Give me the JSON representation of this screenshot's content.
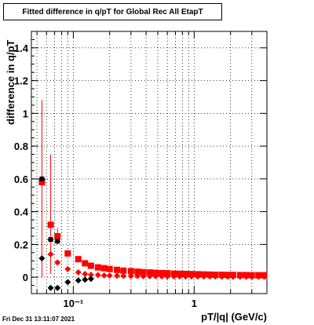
{
  "chart_data": {
    "type": "scatter",
    "title": "Fitted difference in q/pT for Global Rec All EtapT",
    "xlabel": "pT/|q| (GeV/c)",
    "ylabel": "difference in q/pT",
    "x_scale": "log",
    "xlim": [
      0.045,
      4.0
    ],
    "ylim": [
      -0.1,
      1.5
    ],
    "x_ticks": [
      {
        "value": 0.1,
        "label": "10⁻¹"
      },
      {
        "value": 1,
        "label": "1"
      }
    ],
    "y_ticks": [
      0,
      0.2,
      0.4,
      0.6,
      0.8,
      1,
      1.2,
      1.4
    ],
    "grid": true,
    "series": [
      {
        "color": "#ff0000",
        "marker": "square",
        "points": [
          {
            "x": 0.055,
            "y": 0.58,
            "yerr_lo": 0.58,
            "yerr_hi": 0.5
          },
          {
            "x": 0.065,
            "y": 0.32,
            "yerr_lo": 0.3,
            "yerr_hi": 0.43
          },
          {
            "x": 0.074,
            "y": 0.25,
            "yerr_lo": 0.05,
            "yerr_hi": 0.05
          },
          {
            "x": 0.09,
            "y": 0.145
          },
          {
            "x": 0.11,
            "y": 0.11
          },
          {
            "x": 0.125,
            "y": 0.085
          },
          {
            "x": 0.14,
            "y": 0.07
          },
          {
            "x": 0.16,
            "y": 0.06
          },
          {
            "x": 0.18,
            "y": 0.055
          },
          {
            "x": 0.2,
            "y": 0.05
          },
          {
            "x": 0.23,
            "y": 0.045
          },
          {
            "x": 0.26,
            "y": 0.04
          },
          {
            "x": 0.3,
            "y": 0.037
          },
          {
            "x": 0.34,
            "y": 0.034
          },
          {
            "x": 0.38,
            "y": 0.031
          },
          {
            "x": 0.43,
            "y": 0.029
          },
          {
            "x": 0.48,
            "y": 0.027
          },
          {
            "x": 0.54,
            "y": 0.025
          },
          {
            "x": 0.6,
            "y": 0.024
          },
          {
            "x": 0.68,
            "y": 0.022
          },
          {
            "x": 0.76,
            "y": 0.021
          },
          {
            "x": 0.85,
            "y": 0.02
          },
          {
            "x": 0.95,
            "y": 0.019
          },
          {
            "x": 1.07,
            "y": 0.018
          },
          {
            "x": 1.2,
            "y": 0.017
          },
          {
            "x": 1.35,
            "y": 0.016
          },
          {
            "x": 1.5,
            "y": 0.015
          },
          {
            "x": 1.7,
            "y": 0.015
          },
          {
            "x": 1.9,
            "y": 0.014
          },
          {
            "x": 2.1,
            "y": 0.014
          },
          {
            "x": 2.4,
            "y": 0.013
          },
          {
            "x": 2.7,
            "y": 0.013
          },
          {
            "x": 3.0,
            "y": 0.012
          },
          {
            "x": 3.4,
            "y": 0.012
          },
          {
            "x": 3.8,
            "y": 0.012
          }
        ]
      },
      {
        "color": "#ff0000",
        "marker": "diamond",
        "points": [
          {
            "x": 0.065,
            "y": 0.14
          },
          {
            "x": 0.074,
            "y": 0.09
          },
          {
            "x": 0.09,
            "y": 0.05
          },
          {
            "x": 0.11,
            "y": 0.03
          },
          {
            "x": 0.125,
            "y": 0.02
          },
          {
            "x": 0.14,
            "y": 0.015
          },
          {
            "x": 0.16,
            "y": 0.013
          },
          {
            "x": 0.18,
            "y": 0.011
          },
          {
            "x": 0.2,
            "y": 0.01
          },
          {
            "x": 0.23,
            "y": 0.009
          },
          {
            "x": 0.26,
            "y": 0.008
          },
          {
            "x": 0.3,
            "y": 0.007
          },
          {
            "x": 0.34,
            "y": 0.007
          },
          {
            "x": 0.38,
            "y": 0.006
          },
          {
            "x": 0.43,
            "y": 0.006
          },
          {
            "x": 0.48,
            "y": 0.006
          },
          {
            "x": 0.54,
            "y": 0.005
          },
          {
            "x": 0.6,
            "y": 0.005
          },
          {
            "x": 0.68,
            "y": 0.005
          },
          {
            "x": 0.76,
            "y": 0.005
          },
          {
            "x": 0.85,
            "y": 0.004
          },
          {
            "x": 0.95,
            "y": 0.004
          },
          {
            "x": 1.07,
            "y": 0.004
          },
          {
            "x": 1.2,
            "y": 0.004
          },
          {
            "x": 1.35,
            "y": 0.004
          },
          {
            "x": 1.5,
            "y": 0.004
          },
          {
            "x": 1.7,
            "y": 0.003
          },
          {
            "x": 1.9,
            "y": 0.003
          },
          {
            "x": 2.1,
            "y": 0.003
          },
          {
            "x": 2.4,
            "y": 0.003
          },
          {
            "x": 2.7,
            "y": 0.003
          },
          {
            "x": 3.0,
            "y": 0.003
          },
          {
            "x": 3.4,
            "y": 0.003
          },
          {
            "x": 3.8,
            "y": 0.003
          }
        ]
      },
      {
        "color": "#000000",
        "marker": "square",
        "points": [
          {
            "x": 0.055,
            "y": 0.6,
            "xerr_lo": 0.004,
            "xerr_hi": 0.004
          },
          {
            "x": 0.065,
            "y": 0.23,
            "xerr_lo": 0.004,
            "xerr_hi": 0.004
          },
          {
            "x": 0.074,
            "y": 0.22,
            "xerr_lo": 0.004,
            "xerr_hi": 0.004
          }
        ]
      },
      {
        "color": "#000000",
        "marker": "diamond",
        "points": [
          {
            "x": 0.055,
            "y": 0.115
          },
          {
            "x": 0.065,
            "y": -0.065
          },
          {
            "x": 0.074,
            "y": -0.065
          },
          {
            "x": 0.09,
            "y": -0.03
          },
          {
            "x": 0.11,
            "y": -0.02
          },
          {
            "x": 0.125,
            "y": -0.015
          },
          {
            "x": 0.14,
            "y": -0.01
          }
        ]
      }
    ]
  },
  "footer": {
    "timestamp": "Fri Dec 31 13:11:07 2021"
  }
}
